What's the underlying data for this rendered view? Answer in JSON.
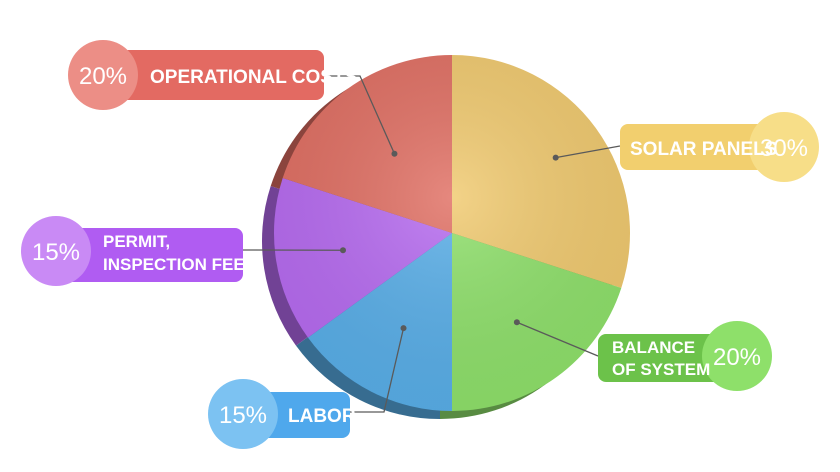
{
  "chart_data": {
    "type": "pie",
    "slices": [
      {
        "label": "SOLAR PANELS",
        "label_lines": [
          "SOLAR PANELS"
        ],
        "percent_label": "30%",
        "value": 30,
        "color": "#F0C96E"
      },
      {
        "label": "BALANCE OF SYSTEM",
        "label_lines": [
          "BALANCE",
          "OF SYSTEM"
        ],
        "percent_label": "20%",
        "value": 20,
        "color": "#8EE06A"
      },
      {
        "label": "LABOR",
        "label_lines": [
          "LABOR"
        ],
        "percent_label": "15%",
        "value": 15,
        "color": "#58AEE8"
      },
      {
        "label": "PERMIT, INSPECTION FEES",
        "label_lines": [
          "PERMIT,",
          "INSPECTION FEES"
        ],
        "percent_label": "15%",
        "value": 15,
        "color": "#B66AF0"
      },
      {
        "label": "OPERATIONAL COSTS",
        "label_lines": [
          "OPERATIONAL COSTS"
        ],
        "percent_label": "20%",
        "value": 20,
        "color": "#E06E62"
      }
    ],
    "callout_colors": {
      "solar": {
        "bar": "#F2CF6E",
        "circle": "#F7DE88",
        "text_pct": "#ffffff"
      },
      "balance": {
        "bar": "#6CC24A",
        "circle": "#8EE06A",
        "text_pct": "#ffffff"
      },
      "labor": {
        "bar": "#4FA8EC",
        "circle": "#7CC2F2",
        "text_pct": "#ffffff"
      },
      "permit": {
        "bar": "#B05CF2",
        "circle": "#C98AF5",
        "text_pct": "#ffffff"
      },
      "operational": {
        "bar": "#E36A62",
        "circle": "#EC8E86",
        "text_pct": "#ffffff"
      }
    }
  }
}
